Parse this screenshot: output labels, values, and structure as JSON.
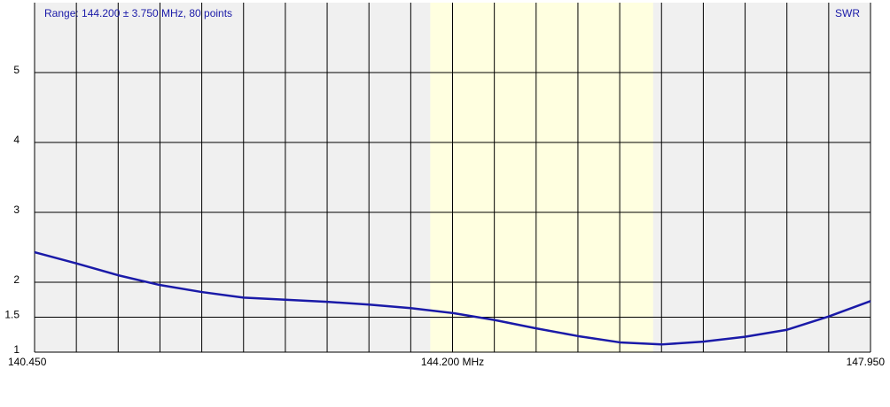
{
  "chart_data": {
    "type": "line",
    "title": "Range: 144.200 ± 3.750 MHz, 80 points",
    "y_label": "SWR",
    "xlim": [
      140.45,
      147.95
    ],
    "xticks": [
      {
        "value": 140.45,
        "label": "140.450"
      },
      {
        "value": 144.2,
        "label": "144.200 MHz"
      },
      {
        "value": 147.95,
        "label": "147.950"
      }
    ],
    "xgrid": [
      140.45,
      140.825,
      141.2,
      141.575,
      141.95,
      142.325,
      142.7,
      143.075,
      143.45,
      143.825,
      144.2,
      144.575,
      144.95,
      145.325,
      145.7,
      146.075,
      146.45,
      146.825,
      147.2,
      147.575,
      147.95
    ],
    "ylim": [
      1,
      6
    ],
    "yticks": [
      1,
      1.5,
      2,
      3,
      4,
      5
    ],
    "band": [
      144,
      146
    ],
    "band_color": "#ffffe0",
    "background": "#f0f0f0",
    "grid": true,
    "series": [
      {
        "color": "#1a1aa8",
        "x": [
          140.45,
          140.825,
          141.2,
          141.575,
          141.95,
          142.325,
          142.7,
          143.075,
          143.45,
          143.825,
          144.2,
          144.575,
          144.95,
          145.325,
          145.7,
          146.075,
          146.45,
          146.825,
          147.2,
          147.575,
          147.95
        ],
        "values": [
          2.43,
          2.27,
          2.1,
          1.96,
          1.86,
          1.78,
          1.75,
          1.72,
          1.68,
          1.63,
          1.56,
          1.46,
          1.34,
          1.23,
          1.14,
          1.11,
          1.15,
          1.22,
          1.32,
          1.51,
          1.73
        ]
      }
    ]
  }
}
